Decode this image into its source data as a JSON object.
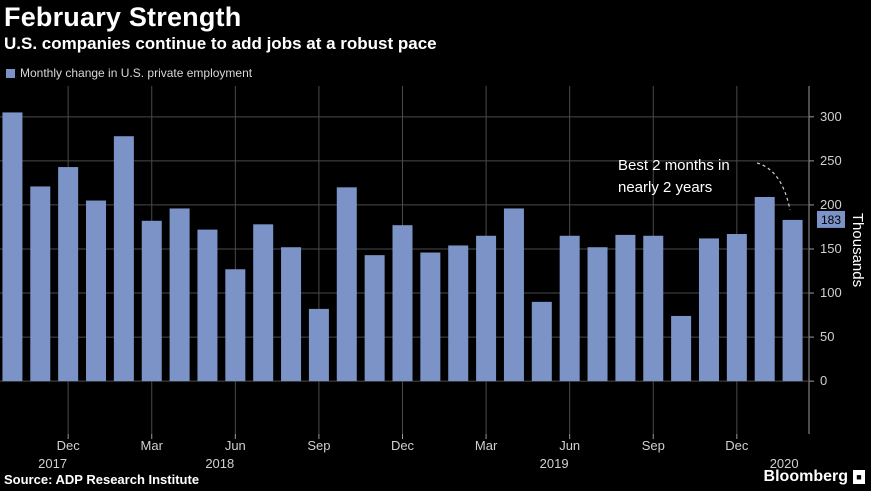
{
  "title": "February Strength",
  "subtitle": "U.S. companies continue to add jobs at a robust pace",
  "legend": {
    "label": "Monthly change in U.S. private employment",
    "color": "#7b93c6"
  },
  "source": "Source: ADP Research Institute",
  "brand": "Bloomberg",
  "annotation": "Best 2 months in nearly 2 years",
  "annotation_lines": [
    "Best 2 months in",
    "nearly 2 years"
  ],
  "chart_data": {
    "type": "bar",
    "ylabel": "Thousands",
    "ylim": [
      -60,
      335
    ],
    "y_ticks": [
      0,
      50,
      100,
      150,
      200,
      250,
      300
    ],
    "grid": true,
    "legend_position": "top-left",
    "bar_color": "#7b93c6",
    "last_value_label": "183",
    "categories": [
      "2017-10",
      "2017-11",
      "2017-12",
      "2018-01",
      "2018-02",
      "2018-03",
      "2018-04",
      "2018-05",
      "2018-06",
      "2018-07",
      "2018-08",
      "2018-09",
      "2018-10",
      "2018-11",
      "2018-12",
      "2019-01",
      "2019-02",
      "2019-03",
      "2019-04",
      "2019-05",
      "2019-06",
      "2019-07",
      "2019-08",
      "2019-09",
      "2019-10",
      "2019-11",
      "2019-12",
      "2020-01",
      "2020-02"
    ],
    "values": [
      305,
      221,
      243,
      205,
      278,
      182,
      196,
      172,
      127,
      178,
      152,
      82,
      220,
      143,
      177,
      146,
      154,
      165,
      196,
      90,
      165,
      152,
      166,
      165,
      74,
      162,
      167,
      209,
      183
    ],
    "x_tick_labels": [
      {
        "index": 2,
        "month": "Dec",
        "year": "2017"
      },
      {
        "index": 5,
        "month": "Mar",
        "year": ""
      },
      {
        "index": 8,
        "month": "Jun",
        "year": "2018"
      },
      {
        "index": 11,
        "month": "Sep",
        "year": ""
      },
      {
        "index": 14,
        "month": "Dec",
        "year": ""
      },
      {
        "index": 17,
        "month": "Mar",
        "year": ""
      },
      {
        "index": 20,
        "month": "Jun",
        "year": "2019"
      },
      {
        "index": 23,
        "month": "Sep",
        "year": ""
      },
      {
        "index": 26,
        "month": "Dec",
        "year": ""
      },
      {
        "index": 27,
        "month": "",
        "year": "2020"
      }
    ]
  }
}
